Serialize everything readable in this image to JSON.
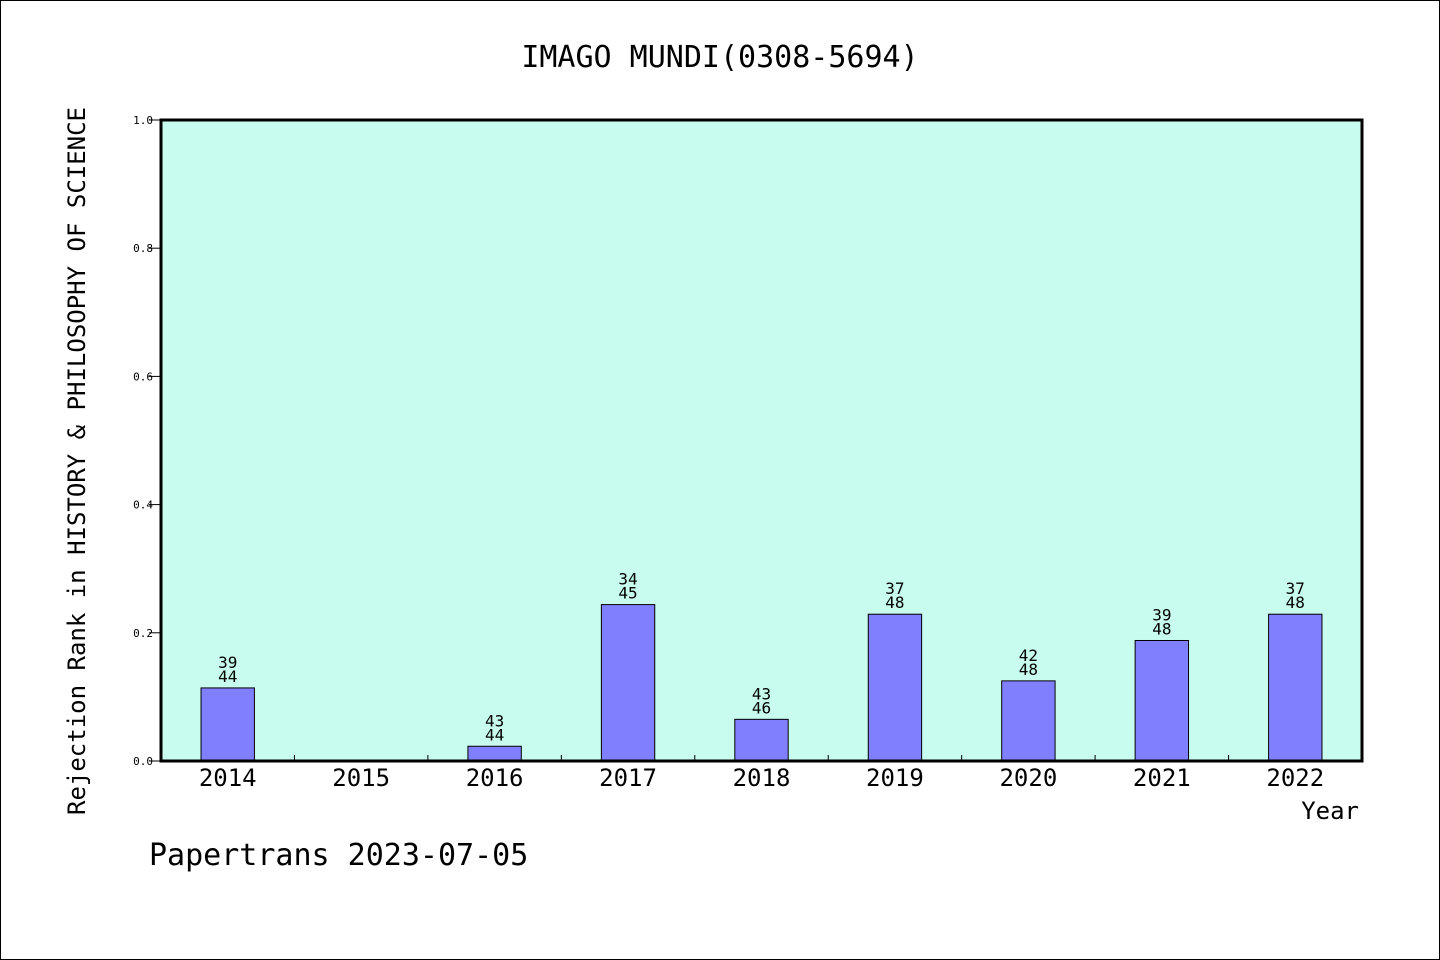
{
  "chart_data": {
    "type": "bar",
    "title": "IMAGO MUNDI(0308-5694)",
    "xlabel": "Year",
    "ylabel": "Rejection Rank in HISTORY & PHILOSOPHY OF SCIENCE",
    "ylim": [
      0,
      1.0
    ],
    "yticks": [
      "0.0",
      "0.2",
      "0.4",
      "0.6",
      "0.8",
      "1.0"
    ],
    "categories": [
      "2014",
      "2015",
      "2016",
      "2017",
      "2018",
      "2019",
      "2020",
      "2021",
      "2022"
    ],
    "values": [
      0.114,
      null,
      0.023,
      0.244,
      0.065,
      0.229,
      0.125,
      0.188,
      0.229
    ],
    "rank_labels": [
      [
        "39",
        "44"
      ],
      null,
      [
        "43",
        "44"
      ],
      [
        "34",
        "45"
      ],
      [
        "43",
        "46"
      ],
      [
        "37",
        "48"
      ],
      [
        "42",
        "48"
      ],
      [
        "39",
        "48"
      ],
      [
        "37",
        "48"
      ]
    ],
    "grid": false,
    "colors": {
      "plot_background": "#c8fcee",
      "bar_fill": "#8080ff",
      "bar_stroke": "#000000"
    }
  },
  "footer": {
    "text": "Papertrans 2023-07-05"
  }
}
